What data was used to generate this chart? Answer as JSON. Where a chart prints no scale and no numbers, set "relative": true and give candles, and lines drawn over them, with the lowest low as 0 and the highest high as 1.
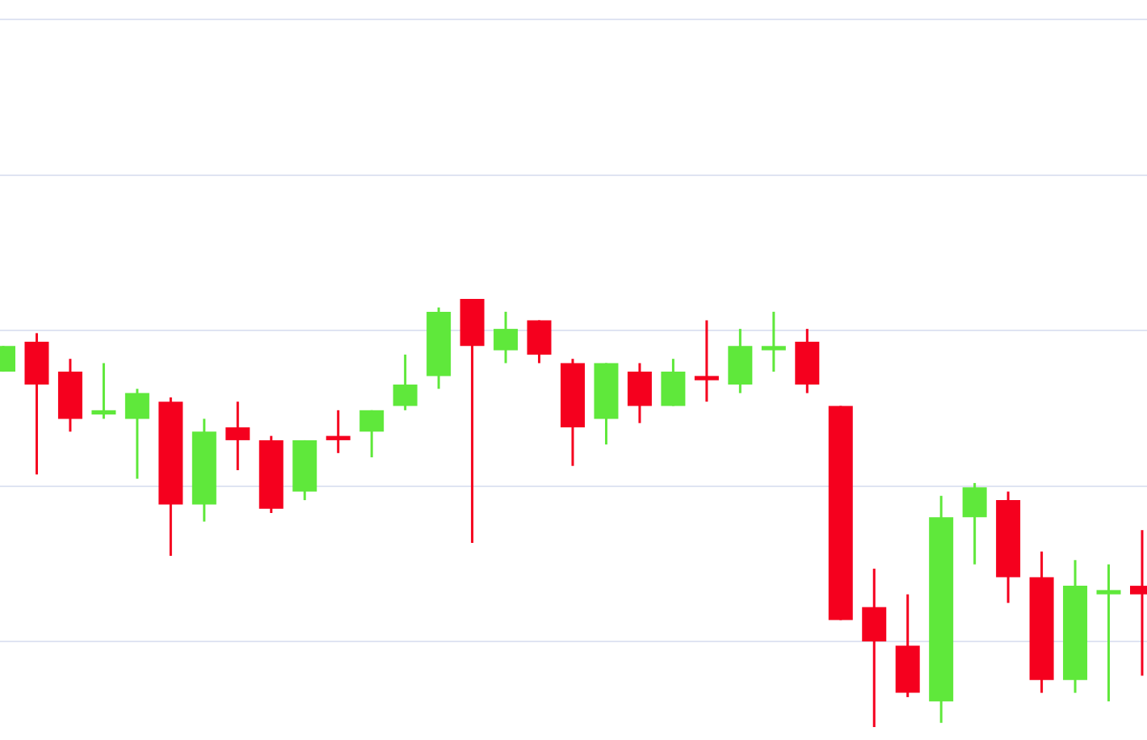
{
  "chart_data": {
    "type": "candlestick",
    "relative": true,
    "grid": "y",
    "categories": [
      null,
      null,
      null,
      null,
      null,
      null,
      null,
      null,
      null,
      null,
      null,
      null,
      null,
      null,
      null,
      null,
      null,
      null,
      null,
      null,
      null,
      null,
      null,
      null,
      null,
      null,
      null,
      null,
      null,
      null,
      null,
      null,
      null,
      null,
      null
    ],
    "ohlc": [
      [
        0.83,
        0.89,
        0.83,
        0.89
      ],
      [
        0.9,
        0.92,
        0.59,
        0.8
      ],
      [
        0.83,
        0.86,
        0.69,
        0.72
      ],
      [
        0.73,
        0.85,
        0.72,
        0.74
      ],
      [
        0.72,
        0.79,
        0.58,
        0.78
      ],
      [
        0.76,
        0.77,
        0.4,
        0.52
      ],
      [
        0.52,
        0.72,
        0.48,
        0.69
      ],
      [
        0.7,
        0.76,
        0.6,
        0.67
      ],
      [
        0.67,
        0.68,
        0.5,
        0.51
      ],
      [
        0.55,
        0.67,
        0.53,
        0.67
      ],
      [
        0.68,
        0.74,
        0.64,
        0.67
      ],
      [
        0.69,
        0.74,
        0.63,
        0.74
      ],
      [
        0.75,
        0.87,
        0.74,
        0.8
      ],
      [
        0.82,
        0.98,
        0.79,
        0.97
      ],
      [
        1.0,
        1.0,
        0.43,
        0.89
      ],
      [
        0.88,
        0.97,
        0.85,
        0.93
      ],
      [
        0.95,
        0.95,
        0.85,
        0.87
      ],
      [
        0.85,
        0.86,
        0.61,
        0.7
      ],
      [
        0.72,
        0.85,
        0.66,
        0.85
      ],
      [
        0.83,
        0.85,
        0.71,
        0.75
      ],
      [
        0.75,
        0.86,
        0.75,
        0.83
      ],
      [
        0.82,
        0.95,
        0.76,
        0.81
      ],
      [
        0.8,
        0.93,
        0.78,
        0.89
      ],
      [
        0.88,
        0.97,
        0.83,
        0.89
      ],
      [
        0.9,
        0.93,
        0.78,
        0.8
      ],
      [
        0.75,
        0.75,
        0.25,
        0.25
      ],
      [
        0.28,
        0.37,
        0.0,
        0.2
      ],
      [
        0.19,
        0.31,
        0.07,
        0.08
      ],
      [
        0.06,
        0.54,
        0.01,
        0.49
      ],
      [
        0.49,
        0.57,
        0.38,
        0.56
      ],
      [
        0.53,
        0.55,
        0.29,
        0.35
      ],
      [
        0.35,
        0.41,
        0.08,
        0.11
      ],
      [
        0.11,
        0.39,
        0.08,
        0.33
      ],
      [
        0.31,
        0.38,
        0.06,
        0.32
      ],
      [
        0.33,
        0.46,
        0.12,
        0.31
      ]
    ],
    "colors": [
      "#5fe83b",
      "#f5001e",
      "#f5001e",
      "#5fe83b",
      "#5fe83b",
      "#f5001e",
      "#5fe83b",
      "#f5001e",
      "#f5001e",
      "#5fe83b",
      "#f5001e",
      "#5fe83b",
      "#5fe83b",
      "#5fe83b",
      "#f5001e",
      "#5fe83b",
      "#f5001e",
      "#f5001e",
      "#5fe83b",
      "#f5001e",
      "#5fe83b",
      "#f5001e",
      "#5fe83b",
      "#5fe83b",
      "#f5001e",
      "#f5001e",
      "#f5001e",
      "#f5001e",
      "#5fe83b",
      "#5fe83b",
      "#f5001e",
      "#f5001e",
      "#5fe83b",
      "#5fe83b",
      "#f5001e"
    ]
  }
}
